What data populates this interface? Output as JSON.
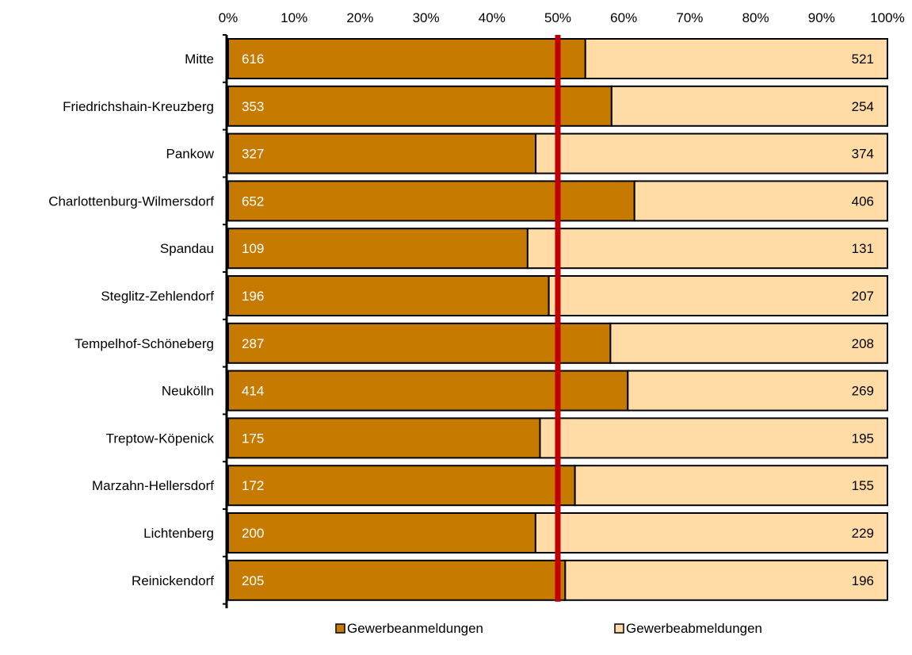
{
  "chart_data": {
    "type": "bar",
    "orientation": "horizontal",
    "stacked": "percent",
    "categories": [
      "Mitte",
      "Friedrichshain-Kreuzberg",
      "Pankow",
      "Charlottenburg-Wilmersdorf",
      "Spandau",
      "Steglitz-Zehlendorf",
      "Tempelhof-Schöneberg",
      "Neukölln",
      "Treptow-Köpenick",
      "Marzahn-Hellersdorf",
      "Lichtenberg",
      "Reinickendorf"
    ],
    "series": [
      {
        "name": "Gewerbeanmeldungen",
        "color": "#C67A00",
        "values": [
          616,
          353,
          327,
          652,
          109,
          196,
          287,
          414,
          175,
          172,
          200,
          205
        ]
      },
      {
        "name": "Gewerbeabmeldungen",
        "color": "#FFDBA6",
        "values": [
          521,
          254,
          374,
          406,
          131,
          207,
          208,
          269,
          195,
          155,
          229,
          196
        ]
      }
    ],
    "x_ticks": [
      "0%",
      "10%",
      "20%",
      "30%",
      "40%",
      "50%",
      "60%",
      "70%",
      "80%",
      "90%",
      "100%"
    ],
    "xlim": [
      0,
      100
    ],
    "axis_position": "top",
    "reference_line": {
      "value": 50,
      "color": "#C00000"
    },
    "grid": false,
    "legend_position": "bottom"
  }
}
